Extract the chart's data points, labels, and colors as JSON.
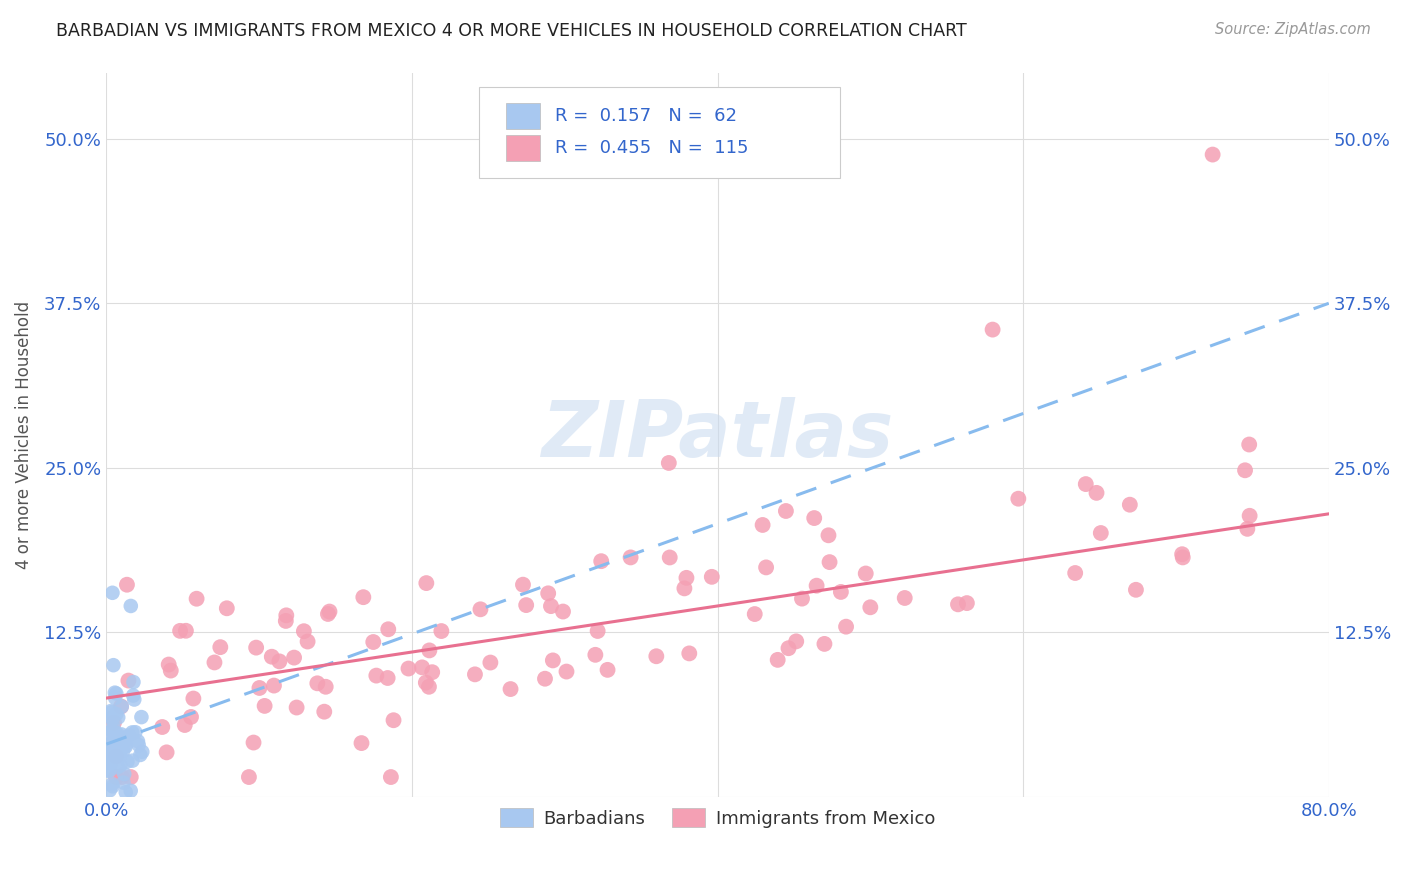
{
  "title": "BARBADIAN VS IMMIGRANTS FROM MEXICO 4 OR MORE VEHICLES IN HOUSEHOLD CORRELATION CHART",
  "source": "Source: ZipAtlas.com",
  "ylabel": "4 or more Vehicles in Household",
  "xlim": [
    0.0,
    0.8
  ],
  "ylim": [
    0.0,
    0.55
  ],
  "xticks": [
    0.0,
    0.2,
    0.4,
    0.6,
    0.8
  ],
  "yticks": [
    0.0,
    0.125,
    0.25,
    0.375,
    0.5
  ],
  "xticklabels": [
    "0.0%",
    "",
    "",
    "",
    "80.0%"
  ],
  "yticklabels": [
    "",
    "12.5%",
    "25.0%",
    "37.5%",
    "50.0%"
  ],
  "legend_labels": [
    "Barbadians",
    "Immigrants from Mexico"
  ],
  "barbadian_color": "#a8c8f0",
  "mexico_color": "#f4a0b4",
  "background_color": "#ffffff",
  "grid_color": "#dddddd",
  "blue_line_color": "#88bbee",
  "pink_line_color": "#e87090",
  "blue_line_x0": 0.0,
  "blue_line_y0": 0.04,
  "blue_line_x1": 0.8,
  "blue_line_y1": 0.375,
  "pink_line_x0": 0.0,
  "pink_line_y0": 0.075,
  "pink_line_x1": 0.8,
  "pink_line_y1": 0.215,
  "watermark_text": "ZIPatlas",
  "watermark_color": "#c8daf0",
  "barbadian_R": "0.157",
  "barbadian_N": "62",
  "mexico_R": "0.455",
  "mexico_N": "115"
}
